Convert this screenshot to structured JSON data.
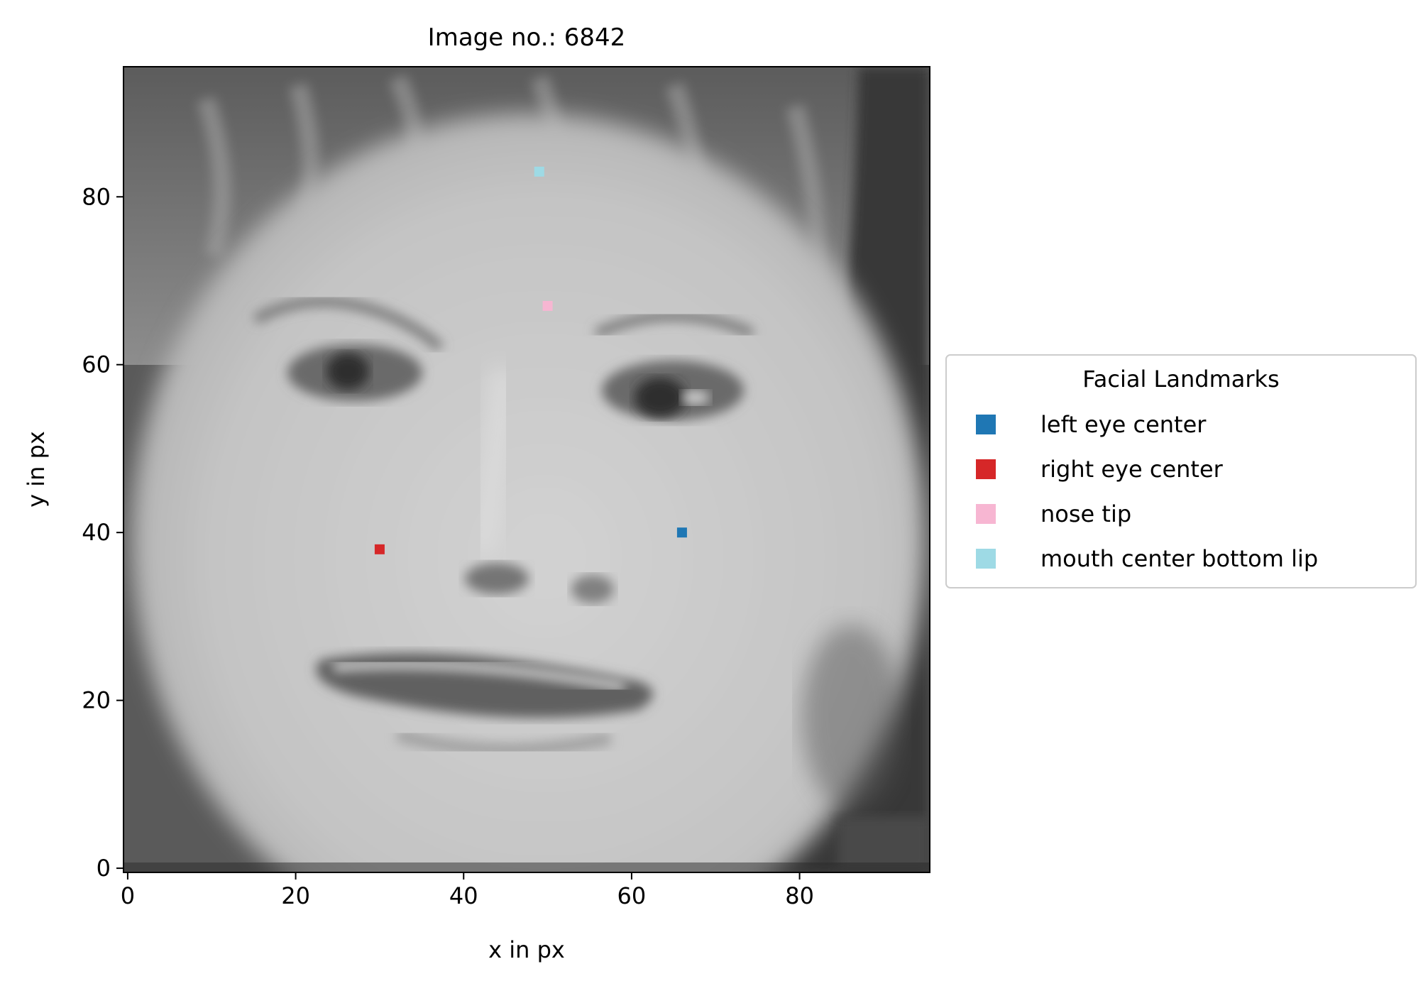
{
  "chart_data": {
    "type": "scatter",
    "title": "Image no.: 6842",
    "xlabel": "x in px",
    "ylabel": "y in px",
    "xlim": [
      -0.5,
      95.5
    ],
    "ylim": [
      95.5,
      -0.5
    ],
    "x_ticks": [
      0,
      20,
      40,
      60,
      80
    ],
    "y_ticks": [
      0,
      20,
      40,
      60,
      80
    ],
    "background": "grayscale face photo (96 × 96 px)",
    "legend": {
      "title": "Facial Landmarks",
      "placement": "center-right outside"
    },
    "series": [
      {
        "name": "left eye center",
        "x": [
          66
        ],
        "y": [
          40
        ],
        "color": "#1f77b4"
      },
      {
        "name": "right eye center",
        "x": [
          30
        ],
        "y": [
          38
        ],
        "color": "#d62728"
      },
      {
        "name": "nose tip",
        "x": [
          50
        ],
        "y": [
          67
        ],
        "color": "#f7b6d2"
      },
      {
        "name": "mouth center bottom lip",
        "x": [
          49
        ],
        "y": [
          83
        ],
        "color": "#9edae5"
      }
    ]
  }
}
